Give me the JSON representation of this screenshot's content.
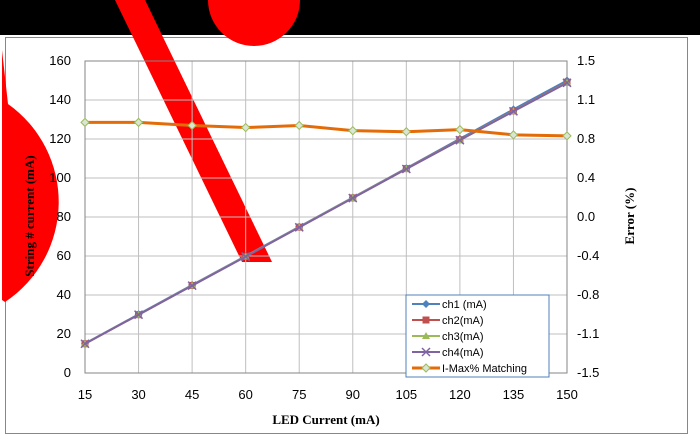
{
  "chart_data": {
    "type": "line",
    "title": "",
    "xlabel": "LED Current (mA)",
    "ylabel": "String # current  (mA)",
    "y2label": "Error (%)",
    "categories": [
      "15",
      "30",
      "45",
      "60",
      "75",
      "90",
      "105",
      "120",
      "135",
      "150"
    ],
    "ylim": [
      0,
      160
    ],
    "yticks": [
      0,
      20,
      40,
      60,
      80,
      100,
      120,
      140,
      160
    ],
    "y2lim": [
      -1.5,
      1.5
    ],
    "y2ticks": [
      "-1.5",
      "-1.1",
      "-0.8",
      "-0.4",
      "0.0",
      "0.4",
      "0.8",
      "1.1",
      "1.5"
    ],
    "grid": true,
    "legend_position": "bottom-right inside plot",
    "series": [
      {
        "name": "ch1 (mA)",
        "axis": "left",
        "color": "#4f81bd",
        "marker": "diamond",
        "values": [
          15.1,
          30.1,
          45.1,
          60.0,
          75.0,
          90.0,
          105.0,
          120.1,
          135.2,
          150.0
        ]
      },
      {
        "name": "ch2(mA)",
        "axis": "left",
        "color": "#c0504d",
        "marker": "square",
        "values": [
          15.0,
          29.9,
          44.9,
          59.8,
          74.8,
          89.8,
          104.8,
          119.6,
          134.4,
          149.1
        ]
      },
      {
        "name": "ch3(mA)",
        "axis": "left",
        "color": "#9bbb59",
        "marker": "triangle",
        "values": [
          15.0,
          29.9,
          44.9,
          59.8,
          74.8,
          89.8,
          104.7,
          119.5,
          134.3,
          148.9
        ]
      },
      {
        "name": "ch4(mA)",
        "axis": "left",
        "color": "#8064a2",
        "marker": "x",
        "values": [
          15.0,
          29.9,
          44.8,
          59.7,
          74.7,
          89.7,
          104.6,
          119.4,
          134.2,
          148.8
        ]
      },
      {
        "name": "I-Max% Matching",
        "axis": "right",
        "color": "#e36c09",
        "marker": "diamond-open",
        "values": [
          0.91,
          0.91,
          0.88,
          0.86,
          0.88,
          0.83,
          0.82,
          0.84,
          0.79,
          0.78
        ]
      }
    ]
  },
  "watermark": {
    "color": "#ff0000",
    "description": "red decorative logo"
  }
}
